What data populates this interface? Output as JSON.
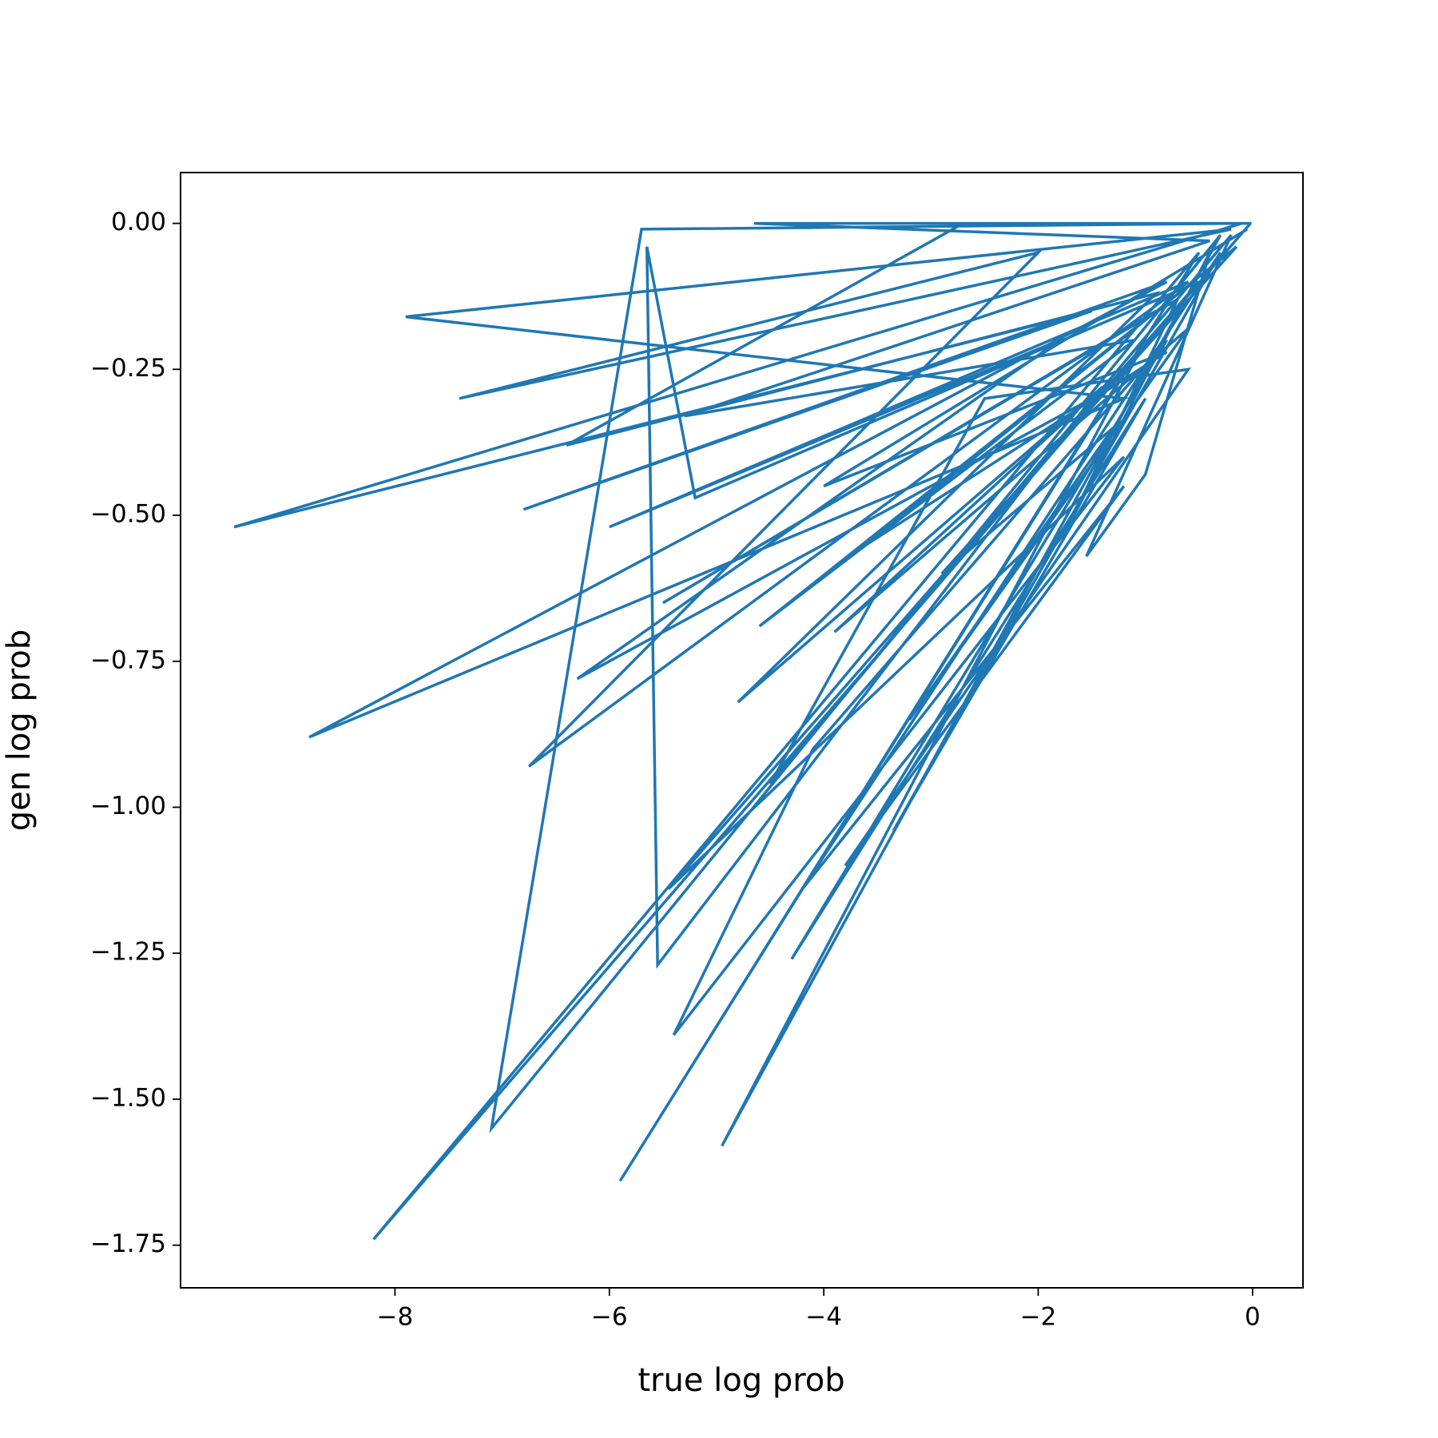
{
  "chart_data": {
    "type": "line",
    "x_label": "true log prob",
    "y_label": "gen log prob",
    "color": "#1f77b4",
    "grid": false,
    "xlim": [
      -10.0,
      0.47
    ],
    "ylim": [
      -1.823,
      0.087
    ],
    "xticks": [
      {
        "value": -8,
        "label": "−8"
      },
      {
        "value": -6,
        "label": "−6"
      },
      {
        "value": -4,
        "label": "−4"
      },
      {
        "value": -2,
        "label": "−2"
      },
      0
    ],
    "yticks": [
      {
        "value": 0,
        "label": "0.00"
      },
      {
        "value": -0.25,
        "label": "−0.25"
      },
      {
        "value": -0.5,
        "label": "−0.50"
      },
      {
        "value": -0.75,
        "label": "−0.75"
      },
      {
        "value": -1.0,
        "label": "−1.00"
      },
      {
        "value": -1.25,
        "label": "−1.25"
      },
      {
        "value": -1.5,
        "label": "−1.50"
      },
      {
        "value": -1.75,
        "label": "−1.75"
      }
    ],
    "x": [
      -0.02,
      -8.2,
      -0.5,
      -5.9,
      -1.0,
      -4.95,
      -0.3,
      -7.1,
      -5.7,
      -0.1,
      -9.5,
      -1.5,
      -6.8,
      -0.8,
      -8.8,
      -1.2,
      -7.9,
      -0.2,
      -7.4,
      -2.0,
      -6.75,
      -0.6,
      -6.0,
      -1.8,
      -6.3,
      -1.5,
      -5.55,
      -5.65,
      -5.2,
      -0.5,
      -5.45,
      -1.2,
      -5.4,
      -4.1,
      -0.8,
      -4.3,
      -1.0,
      -3.35,
      -0.3,
      -4.2,
      -1.2,
      -3.8,
      -0.6,
      -2.5,
      -4.5,
      -0.2,
      -1.55,
      -1.0,
      -0.4,
      -1.75,
      -0.7,
      -5.5,
      -0.9,
      -4.6,
      -1.1,
      -5.3,
      -0.4,
      -4.65,
      -0.01,
      -2.7,
      -6.4,
      -0.9,
      -4.8,
      -1.4,
      -3.9,
      -0.6,
      -3.2,
      -1.3,
      -2.9,
      -0.15,
      -3.6,
      -0.8,
      -4.0,
      -0.05
    ],
    "y": [
      0.0,
      -1.74,
      -0.05,
      -1.64,
      -0.2,
      -1.58,
      -0.02,
      -1.55,
      -0.01,
      0.0,
      -0.52,
      -0.15,
      -0.49,
      -0.1,
      -0.88,
      -0.3,
      -0.16,
      -0.01,
      -0.3,
      -0.05,
      -0.93,
      -0.1,
      -0.52,
      -0.2,
      -0.78,
      -0.3,
      -1.27,
      -0.04,
      -0.47,
      -0.1,
      -1.14,
      -0.4,
      -1.39,
      -0.9,
      -0.2,
      -1.26,
      -0.3,
      -1.04,
      -0.05,
      -1.14,
      -0.45,
      -1.1,
      -0.25,
      -0.3,
      -0.96,
      -0.02,
      -0.57,
      -0.43,
      -0.05,
      -0.53,
      -0.13,
      -0.65,
      -0.15,
      -0.69,
      -0.2,
      -0.33,
      -0.03,
      0.0,
      0.0,
      0.0,
      -0.38,
      -0.12,
      -0.82,
      -0.28,
      -0.7,
      -0.18,
      -0.85,
      -0.35,
      -0.6,
      -0.04,
      -0.55,
      -0.22,
      -0.45,
      -0.01
    ]
  }
}
